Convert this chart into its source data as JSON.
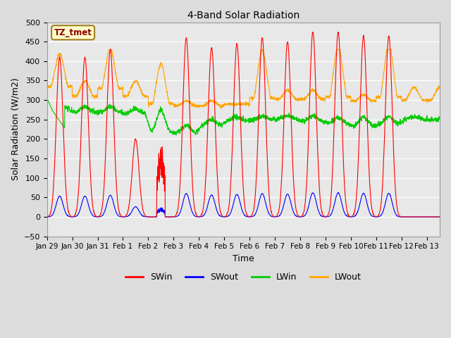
{
  "title": "4-Band Solar Radiation",
  "xlabel": "Time",
  "ylabel": "Solar Radiation (W/m2)",
  "annotation_text": "TZ_tmet",
  "annotation_color": "#8B0000",
  "annotation_bg": "#FFFFCC",
  "ylim": [
    -50,
    500
  ],
  "background_color": "#DCDCDC",
  "plot_bg": "#E8E8E8",
  "grid_color": "#FFFFFF",
  "colors": {
    "SWin": "#FF0000",
    "SWout": "#0000FF",
    "LWin": "#00CC00",
    "LWout": "#FFA500"
  },
  "x_tick_labels": [
    "Jan 29",
    "Jan 30",
    "Jan 31",
    "Feb 1",
    "Feb 2",
    "Feb 3",
    "Feb 4",
    "Feb 5",
    "Feb 6",
    "Feb 7",
    "Feb 8",
    "Feb 9",
    "Feb 10",
    "Feb 11",
    "Feb 12",
    "Feb 13"
  ],
  "x_tick_positions": [
    0,
    1,
    2,
    3,
    4,
    5,
    6,
    7,
    8,
    9,
    10,
    11,
    12,
    13,
    14,
    15
  ]
}
